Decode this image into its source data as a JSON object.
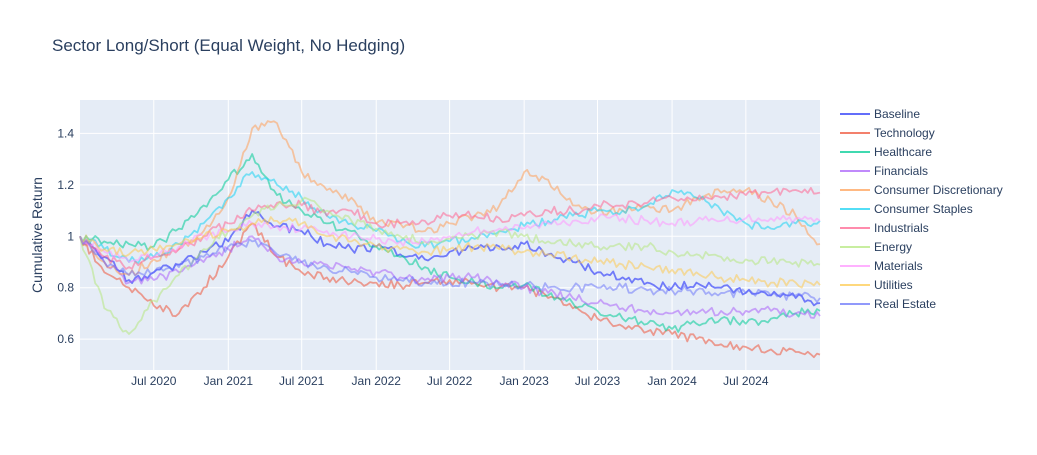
{
  "chart_data": {
    "type": "line",
    "title": "Sector Long/Short (Equal Weight, No Hedging)",
    "xlabel": "",
    "ylabel": "Cumulative Return",
    "x_range": [
      "2020-01-01",
      "2024-12-31"
    ],
    "ylim": [
      0.48,
      1.53
    ],
    "x_ticks": [
      {
        "date": "2020-07-01",
        "label": "Jul 2020"
      },
      {
        "date": "2021-01-01",
        "label": "Jan 2021"
      },
      {
        "date": "2021-07-01",
        "label": "Jul 2021"
      },
      {
        "date": "2022-01-01",
        "label": "Jan 2022"
      },
      {
        "date": "2022-07-01",
        "label": "Jul 2022"
      },
      {
        "date": "2023-01-01",
        "label": "Jan 2023"
      },
      {
        "date": "2023-07-01",
        "label": "Jul 2023"
      },
      {
        "date": "2024-01-01",
        "label": "Jan 2024"
      },
      {
        "date": "2024-07-01",
        "label": "Jul 2024"
      }
    ],
    "y_ticks": [
      {
        "value": 0.6,
        "label": "0.6"
      },
      {
        "value": 0.8,
        "label": "0.8"
      },
      {
        "value": 1.0,
        "label": "1"
      },
      {
        "value": 1.2,
        "label": "1.2"
      },
      {
        "value": 1.4,
        "label": "1.4"
      }
    ],
    "grid": true,
    "legend_position": "right",
    "x": [
      "2020-01-01",
      "2020-03-01",
      "2020-05-01",
      "2020-07-01",
      "2020-09-01",
      "2020-11-01",
      "2021-01-01",
      "2021-03-01",
      "2021-05-01",
      "2021-07-01",
      "2021-09-01",
      "2021-11-01",
      "2022-01-01",
      "2022-03-01",
      "2022-05-01",
      "2022-07-01",
      "2022-09-01",
      "2022-11-01",
      "2023-01-01",
      "2023-03-01",
      "2023-05-01",
      "2023-07-01",
      "2023-09-01",
      "2023-11-01",
      "2024-01-01",
      "2024-03-01",
      "2024-05-01",
      "2024-07-01",
      "2024-09-01",
      "2024-11-01",
      "2024-12-31"
    ],
    "series": [
      {
        "name": "Baseline",
        "color": "#636efa",
        "opacity": 0.9,
        "values": [
          1.0,
          0.92,
          0.83,
          0.86,
          0.89,
          0.94,
          0.98,
          1.1,
          1.04,
          1.02,
          0.97,
          0.95,
          0.96,
          0.93,
          0.91,
          0.94,
          0.95,
          0.96,
          0.97,
          0.93,
          0.9,
          0.86,
          0.84,
          0.82,
          0.8,
          0.82,
          0.8,
          0.78,
          0.77,
          0.76,
          0.74
        ]
      },
      {
        "name": "Technology",
        "color": "#ef553b",
        "opacity": 0.55,
        "values": [
          1.0,
          0.86,
          0.8,
          0.73,
          0.7,
          0.8,
          0.92,
          1.05,
          0.92,
          0.86,
          0.84,
          0.82,
          0.82,
          0.81,
          0.82,
          0.83,
          0.82,
          0.8,
          0.8,
          0.76,
          0.72,
          0.68,
          0.65,
          0.63,
          0.62,
          0.6,
          0.58,
          0.57,
          0.56,
          0.55,
          0.54
        ]
      },
      {
        "name": "Healthcare",
        "color": "#00cc96",
        "opacity": 0.55,
        "values": [
          1.0,
          0.98,
          0.97,
          0.96,
          1.03,
          1.12,
          1.22,
          1.32,
          1.16,
          1.1,
          1.05,
          1.02,
          0.96,
          0.92,
          0.88,
          0.84,
          0.82,
          0.8,
          0.81,
          0.77,
          0.74,
          0.71,
          0.68,
          0.66,
          0.64,
          0.66,
          0.68,
          0.66,
          0.68,
          0.7,
          0.71
        ]
      },
      {
        "name": "Financials",
        "color": "#ab63fa",
        "opacity": 0.55,
        "values": [
          1.0,
          0.9,
          0.82,
          0.83,
          0.86,
          0.9,
          0.95,
          1.0,
          0.92,
          0.9,
          0.89,
          0.87,
          0.86,
          0.84,
          0.83,
          0.84,
          0.84,
          0.82,
          0.8,
          0.78,
          0.76,
          0.74,
          0.72,
          0.71,
          0.7,
          0.7,
          0.71,
          0.71,
          0.71,
          0.7,
          0.69
        ]
      },
      {
        "name": "Consumer Discretionary",
        "color": "#ffa15a",
        "opacity": 0.55,
        "values": [
          1.0,
          0.9,
          0.85,
          0.91,
          0.95,
          1.02,
          1.15,
          1.42,
          1.44,
          1.25,
          1.18,
          1.15,
          1.05,
          1.05,
          1.02,
          1.05,
          1.08,
          1.12,
          1.25,
          1.22,
          1.12,
          1.1,
          1.1,
          1.12,
          1.1,
          1.15,
          1.17,
          1.18,
          1.14,
          1.08,
          0.97
        ]
      },
      {
        "name": "Consumer Staples",
        "color": "#19d3f3",
        "opacity": 0.55,
        "values": [
          1.0,
          0.95,
          0.9,
          0.92,
          0.97,
          1.05,
          1.15,
          1.25,
          1.2,
          1.15,
          1.08,
          1.05,
          1.02,
          0.98,
          0.96,
          0.98,
          0.99,
          1.02,
          1.04,
          1.06,
          1.08,
          1.1,
          1.1,
          1.12,
          1.18,
          1.15,
          1.1,
          1.05,
          1.03,
          1.05,
          1.06
        ]
      },
      {
        "name": "Industrials",
        "color": "#ff6692",
        "opacity": 0.55,
        "values": [
          1.0,
          0.92,
          0.88,
          0.92,
          0.95,
          1.0,
          1.05,
          1.1,
          1.13,
          1.12,
          1.08,
          1.1,
          1.05,
          1.05,
          1.06,
          1.08,
          1.08,
          1.07,
          1.08,
          1.1,
          1.1,
          1.12,
          1.12,
          1.13,
          1.15,
          1.14,
          1.15,
          1.16,
          1.17,
          1.18,
          1.17
        ]
      },
      {
        "name": "Energy",
        "color": "#b6e880",
        "opacity": 0.55,
        "values": [
          1.0,
          0.72,
          0.62,
          0.75,
          0.85,
          0.95,
          1.02,
          1.08,
          1.12,
          1.14,
          1.1,
          1.06,
          1.03,
          1.0,
          0.98,
          0.99,
          1.0,
          1.02,
          1.0,
          0.98,
          0.97,
          0.96,
          0.96,
          0.96,
          0.94,
          0.93,
          0.92,
          0.91,
          0.9,
          0.9,
          0.89
        ]
      },
      {
        "name": "Materials",
        "color": "#ff97ff",
        "opacity": 0.55,
        "values": [
          1.0,
          0.94,
          0.9,
          0.92,
          0.96,
          1.0,
          1.02,
          1.05,
          1.04,
          1.03,
          1.02,
          1.0,
          0.99,
          0.98,
          0.98,
          1.0,
          1.02,
          1.03,
          1.03,
          1.05,
          1.06,
          1.07,
          1.07,
          1.06,
          1.05,
          1.06,
          1.06,
          1.07,
          1.07,
          1.07,
          1.06
        ]
      },
      {
        "name": "Utilities",
        "color": "#fecb52",
        "opacity": 0.55,
        "values": [
          1.0,
          0.95,
          0.93,
          0.95,
          0.97,
          1.0,
          1.02,
          1.05,
          1.06,
          1.05,
          1.0,
          0.98,
          0.96,
          0.95,
          0.94,
          0.95,
          0.96,
          0.95,
          0.94,
          0.93,
          0.92,
          0.9,
          0.89,
          0.88,
          0.87,
          0.86,
          0.84,
          0.83,
          0.82,
          0.82,
          0.81
        ]
      },
      {
        "name": "Real Estate",
        "color": "#636efa",
        "opacity": 0.5,
        "values": [
          1.0,
          0.9,
          0.85,
          0.86,
          0.88,
          0.92,
          0.96,
          0.98,
          0.93,
          0.9,
          0.88,
          0.86,
          0.84,
          0.83,
          0.82,
          0.82,
          0.82,
          0.81,
          0.81,
          0.8,
          0.8,
          0.8,
          0.8,
          0.79,
          0.79,
          0.79,
          0.78,
          0.78,
          0.77,
          0.77,
          0.76
        ]
      }
    ]
  }
}
